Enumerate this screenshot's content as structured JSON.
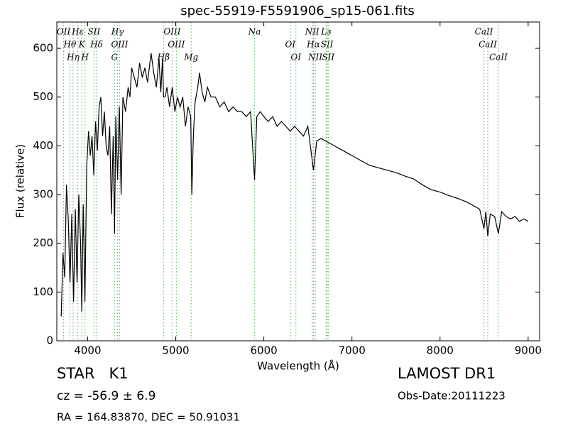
{
  "chart_data": {
    "type": "line",
    "title": "spec-55919-F5591906_sp15-061.fits",
    "x_label": "Wavelength (Å)",
    "y_label": "Flux (relative)",
    "color": "#000000",
    "line_marker_color": "#66bb66",
    "xlim": [
      3650,
      9130
    ],
    "ylim": [
      0,
      654
    ],
    "xticks": [
      4000,
      5000,
      6000,
      7000,
      8000,
      9000
    ],
    "yticks": [
      0,
      100,
      200,
      300,
      400,
      500,
      600
    ],
    "x": [
      3700,
      3720,
      3740,
      3760,
      3780,
      3800,
      3820,
      3840,
      3860,
      3880,
      3900,
      3920,
      3934,
      3950,
      3969,
      3990,
      4010,
      4030,
      4050,
      4070,
      4090,
      4110,
      4130,
      4150,
      4170,
      4190,
      4210,
      4230,
      4250,
      4270,
      4290,
      4305,
      4320,
      4340,
      4360,
      4380,
      4400,
      4430,
      4460,
      4480,
      4500,
      4530,
      4560,
      4590,
      4620,
      4650,
      4680,
      4700,
      4720,
      4750,
      4780,
      4810,
      4830,
      4850,
      4861,
      4880,
      4900,
      4930,
      4960,
      4990,
      5020,
      5050,
      5080,
      5110,
      5140,
      5170,
      5183,
      5200,
      5220,
      5250,
      5270,
      5300,
      5330,
      5360,
      5400,
      5450,
      5500,
      5550,
      5600,
      5650,
      5700,
      5750,
      5800,
      5850,
      5894,
      5920,
      5960,
      6000,
      6050,
      6100,
      6150,
      6200,
      6250,
      6300,
      6350,
      6400,
      6450,
      6500,
      6563,
      6600,
      6650,
      6700,
      6750,
      6800,
      6850,
      6900,
      6950,
      7000,
      7100,
      7200,
      7300,
      7400,
      7500,
      7600,
      7700,
      7800,
      7900,
      8000,
      8100,
      8200,
      8300,
      8400,
      8450,
      8498,
      8520,
      8542,
      8570,
      8620,
      8662,
      8700,
      8750,
      8800,
      8850,
      8900,
      8950,
      9000
    ],
    "values": [
      50,
      180,
      130,
      320,
      250,
      120,
      260,
      80,
      270,
      120,
      300,
      200,
      60,
      280,
      80,
      360,
      430,
      380,
      420,
      340,
      450,
      390,
      480,
      500,
      420,
      470,
      400,
      380,
      440,
      260,
      420,
      220,
      460,
      330,
      480,
      300,
      500,
      470,
      520,
      500,
      560,
      540,
      520,
      570,
      540,
      560,
      530,
      560,
      590,
      550,
      520,
      580,
      510,
      580,
      500,
      500,
      520,
      480,
      520,
      470,
      500,
      480,
      500,
      440,
      480,
      460,
      300,
      420,
      490,
      520,
      550,
      510,
      490,
      520,
      500,
      500,
      480,
      490,
      470,
      480,
      470,
      470,
      460,
      470,
      330,
      460,
      470,
      460,
      450,
      460,
      440,
      450,
      440,
      430,
      440,
      430,
      420,
      440,
      350,
      410,
      415,
      410,
      405,
      400,
      395,
      390,
      385,
      380,
      370,
      360,
      355,
      350,
      345,
      338,
      332,
      320,
      310,
      305,
      298,
      292,
      285,
      275,
      270,
      230,
      265,
      215,
      260,
      255,
      220,
      265,
      255,
      250,
      255,
      245,
      250,
      245
    ],
    "lines": [
      {
        "label": "OII",
        "wavelength": 3727
      },
      {
        "label": "Hθ",
        "wavelength": 3798
      },
      {
        "label": "Hη",
        "wavelength": 3835
      },
      {
        "label": "Hε",
        "wavelength": 3889
      },
      {
        "label": "K",
        "wavelength": 3934
      },
      {
        "label": "H",
        "wavelength": 3969
      },
      {
        "label": "SII",
        "wavelength": 4072
      },
      {
        "label": "Hδ",
        "wavelength": 4102
      },
      {
        "label": "G",
        "wavelength": 4305
      },
      {
        "label": "Hγ",
        "wavelength": 4340
      },
      {
        "label": "OIII",
        "wavelength": 4363
      },
      {
        "label": "Hβ",
        "wavelength": 4861
      },
      {
        "label": "OIII",
        "wavelength": 4959
      },
      {
        "label": "OIII",
        "wavelength": 5007
      },
      {
        "label": "Mg",
        "wavelength": 5175
      },
      {
        "label": "Na",
        "wavelength": 5894
      },
      {
        "label": "OI",
        "wavelength": 6300
      },
      {
        "label": "OI",
        "wavelength": 6364
      },
      {
        "label": "NII",
        "wavelength": 6548
      },
      {
        "label": "Hα",
        "wavelength": 6563
      },
      {
        "label": "NII",
        "wavelength": 6583
      },
      {
        "label": "Lз",
        "wavelength": 6707
      },
      {
        "label": "SII",
        "wavelength": 6717
      },
      {
        "label": "SII",
        "wavelength": 6731
      },
      {
        "label": "CaII",
        "wavelength": 8498
      },
      {
        "label": "CaII",
        "wavelength": 8542
      },
      {
        "label": "CaII",
        "wavelength": 8662
      }
    ],
    "annotations": [
      "STAR   K1",
      "LAMOST DR1",
      "cz = -56.9 ± 6.9",
      "Obs-Date:20111223",
      "RA = 164.83870, DEC = 50.91031"
    ]
  }
}
